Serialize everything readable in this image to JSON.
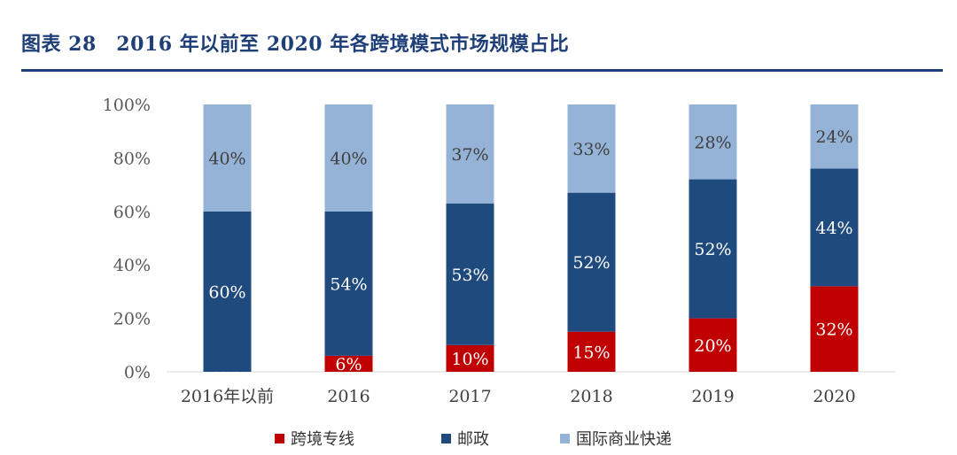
{
  "figure": {
    "title": "图表 28　2016 年以前至 2020 年各跨境模式市场规模占比"
  },
  "chart_data": {
    "type": "bar",
    "stacked": true,
    "categories": [
      "2016年以前",
      "2016",
      "2017",
      "2018",
      "2019",
      "2020"
    ],
    "series": [
      {
        "name": "跨境专线",
        "values": [
          0,
          6,
          10,
          15,
          20,
          32
        ],
        "color": "#c00000"
      },
      {
        "name": "邮政",
        "values": [
          60,
          54,
          53,
          52,
          52,
          44
        ],
        "color": "#1f4a7d"
      },
      {
        "name": "国际商业快递",
        "values": [
          40,
          40,
          37,
          33,
          28,
          24
        ],
        "color": "#95b3d7"
      }
    ],
    "ylim": [
      0,
      100
    ],
    "yticks": [
      "0%",
      "20%",
      "40%",
      "60%",
      "80%",
      "100%"
    ],
    "grid": false,
    "legend_position": "bottom"
  }
}
